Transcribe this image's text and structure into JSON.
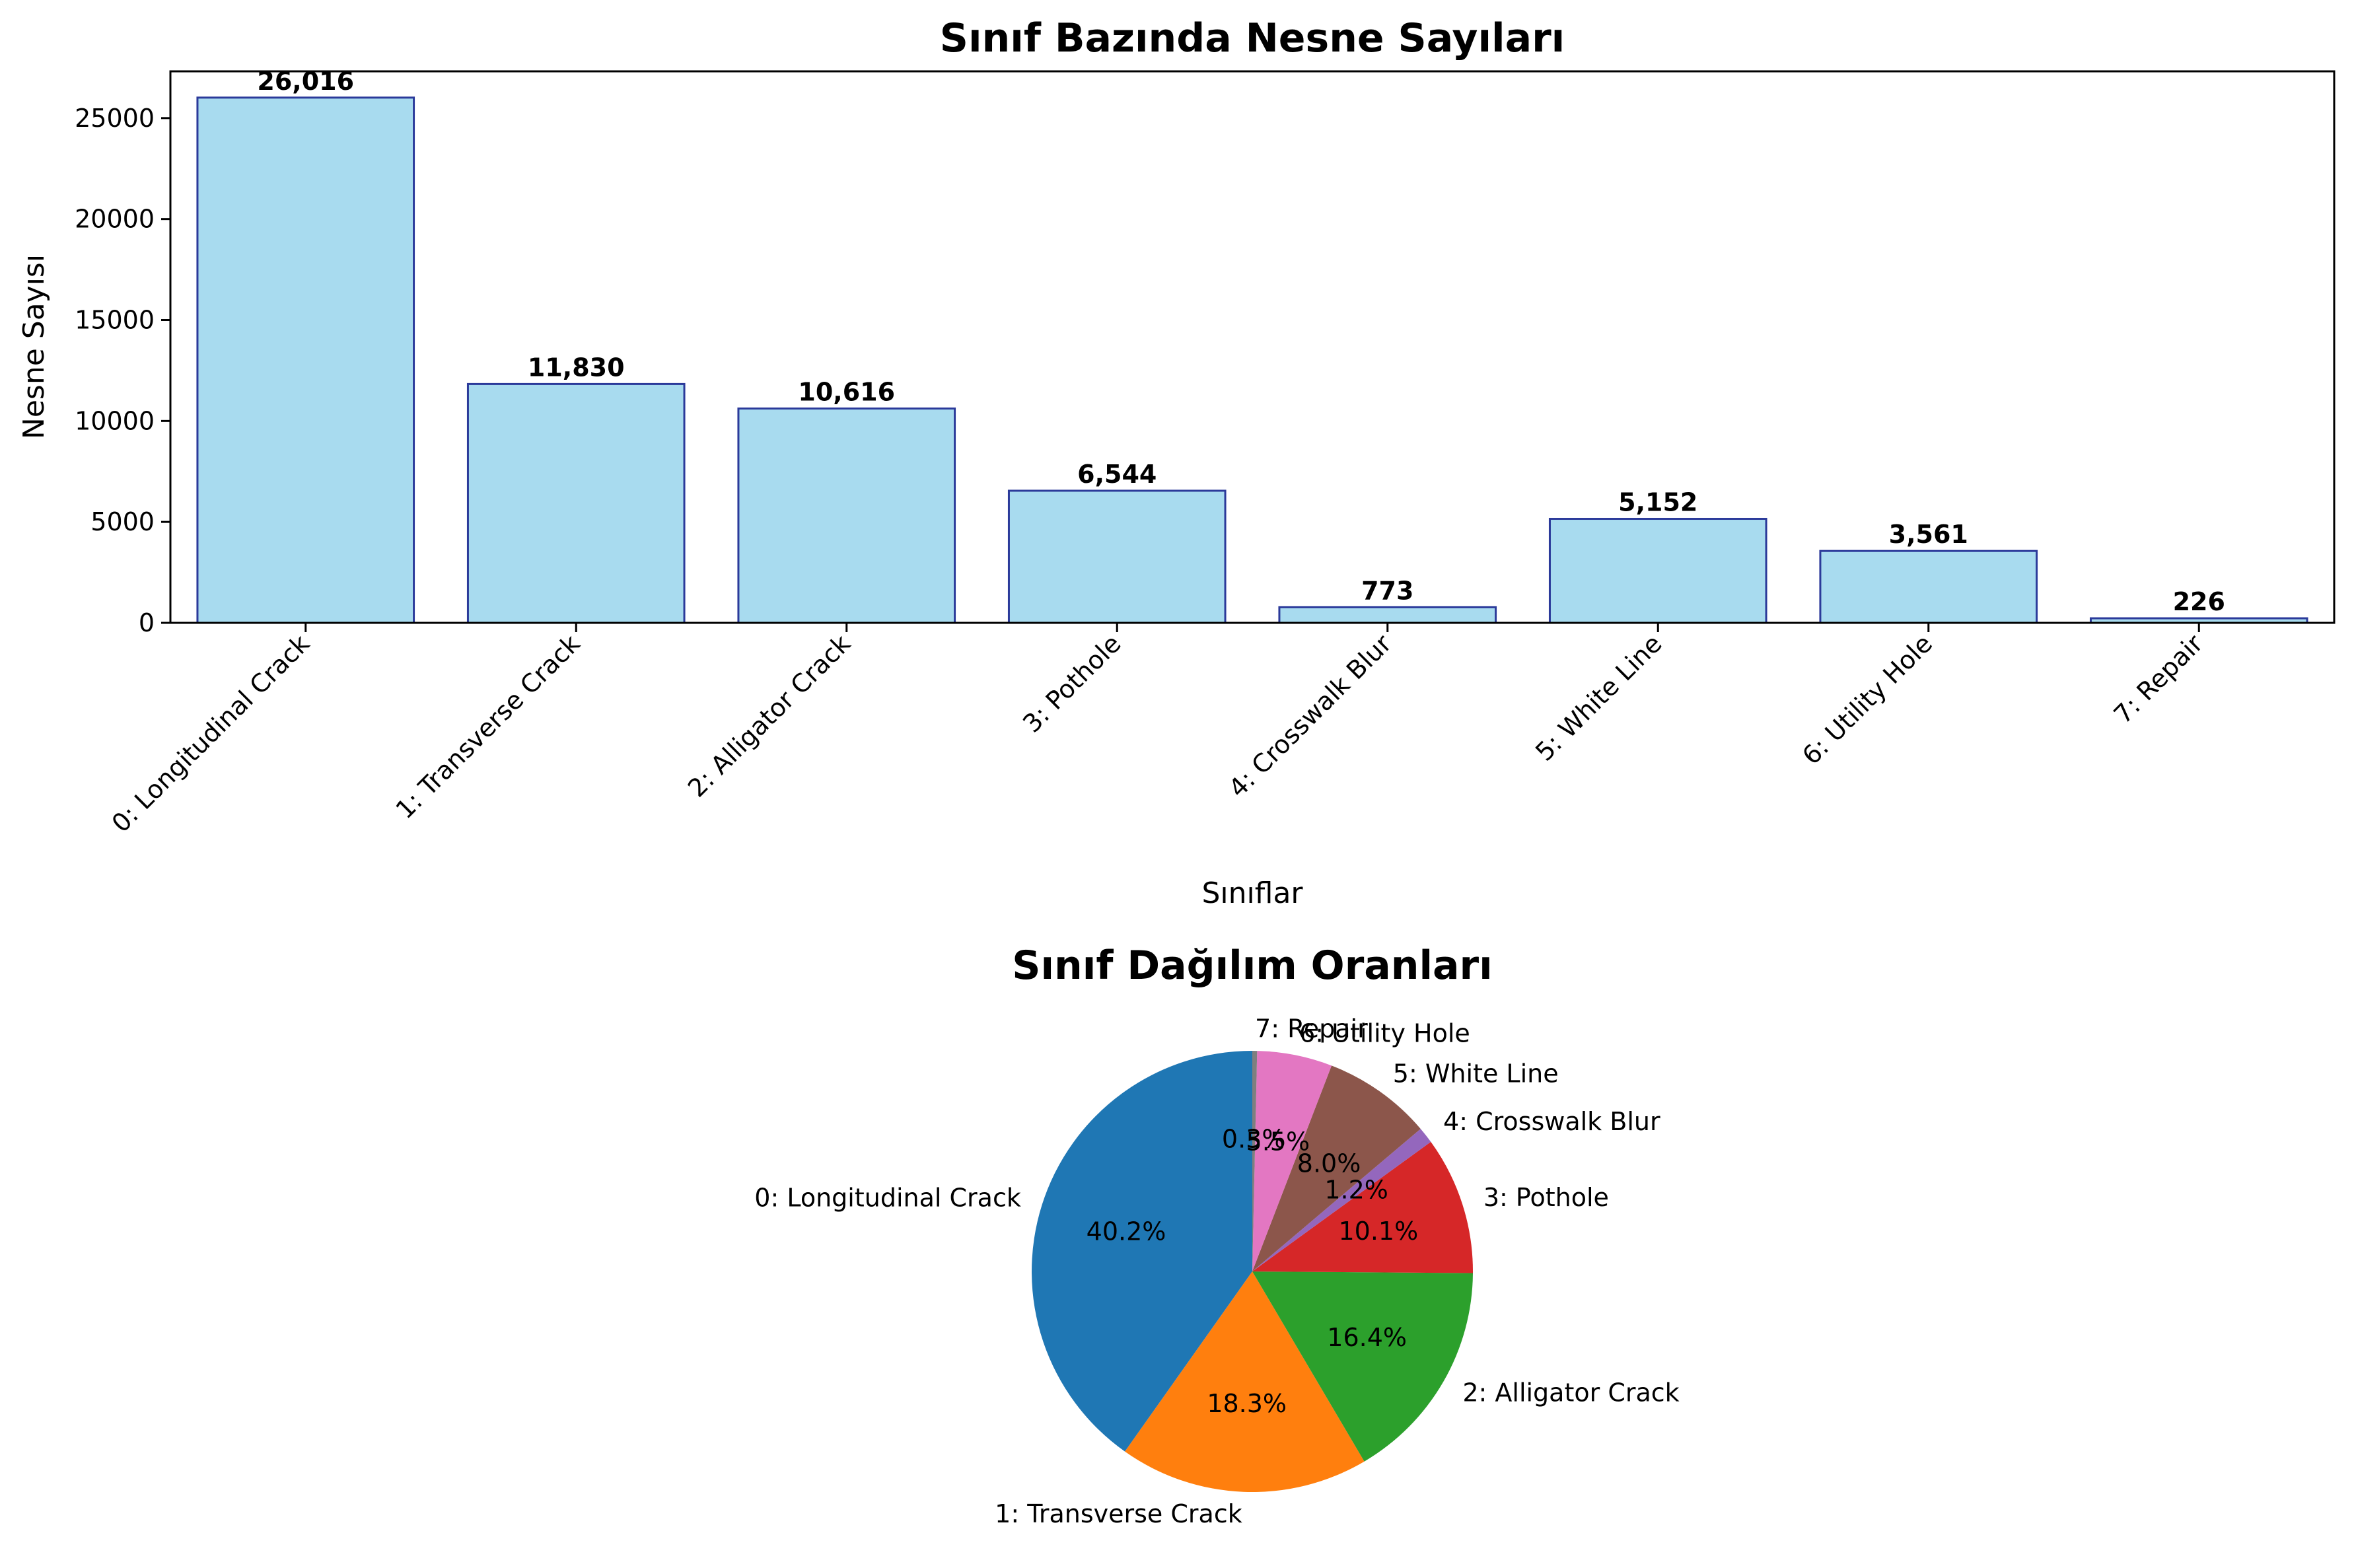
{
  "chart_data": [
    {
      "type": "bar",
      "title": "Sınıf Bazında Nesne Sayıları",
      "xlabel": "Sınıflar",
      "ylabel": "Nesne Sayısı",
      "categories": [
        "0: Longitudinal Crack",
        "1: Transverse Crack",
        "2: Alligator Crack",
        "3: Pothole",
        "4: Crosswalk Blur",
        "5: White Line",
        "6: Utility Hole",
        "7: Repair"
      ],
      "values": [
        26016,
        11830,
        10616,
        6544,
        773,
        5152,
        3561,
        226
      ],
      "value_labels": [
        "26,016",
        "11,830",
        "10,616",
        "6,544",
        "773",
        "5,152",
        "3,561",
        "226"
      ],
      "ylim": [
        0,
        27317
      ],
      "yticks": [
        0,
        5000,
        10000,
        15000,
        20000,
        25000
      ],
      "ytick_labels": [
        "0",
        "5000",
        "10000",
        "15000",
        "20000",
        "25000"
      ],
      "grid": false,
      "bar_color": "#a8dbef",
      "edge_color": "#2b3a9a"
    },
    {
      "type": "pie",
      "title": "Sınıf Dağılım Oranları",
      "labels": [
        "0: Longitudinal Crack",
        "1: Transverse Crack",
        "2: Alligator Crack",
        "3: Pothole",
        "4: Crosswalk Blur",
        "5: White Line",
        "6: Utility Hole",
        "7: Repair"
      ],
      "values": [
        26016,
        11830,
        10616,
        6544,
        773,
        5152,
        3561,
        226
      ],
      "percent_labels": [
        "40.2%",
        "18.3%",
        "16.4%",
        "10.1%",
        "1.2%",
        "8.0%",
        "5.5%",
        "0.3%"
      ],
      "colors": [
        "#1f77b4",
        "#ff7f0e",
        "#2ca02c",
        "#d62728",
        "#9467bd",
        "#8c564b",
        "#e377c2",
        "#7f7f7f"
      ],
      "start_angle": 90,
      "direction": "counterclockwise"
    }
  ]
}
